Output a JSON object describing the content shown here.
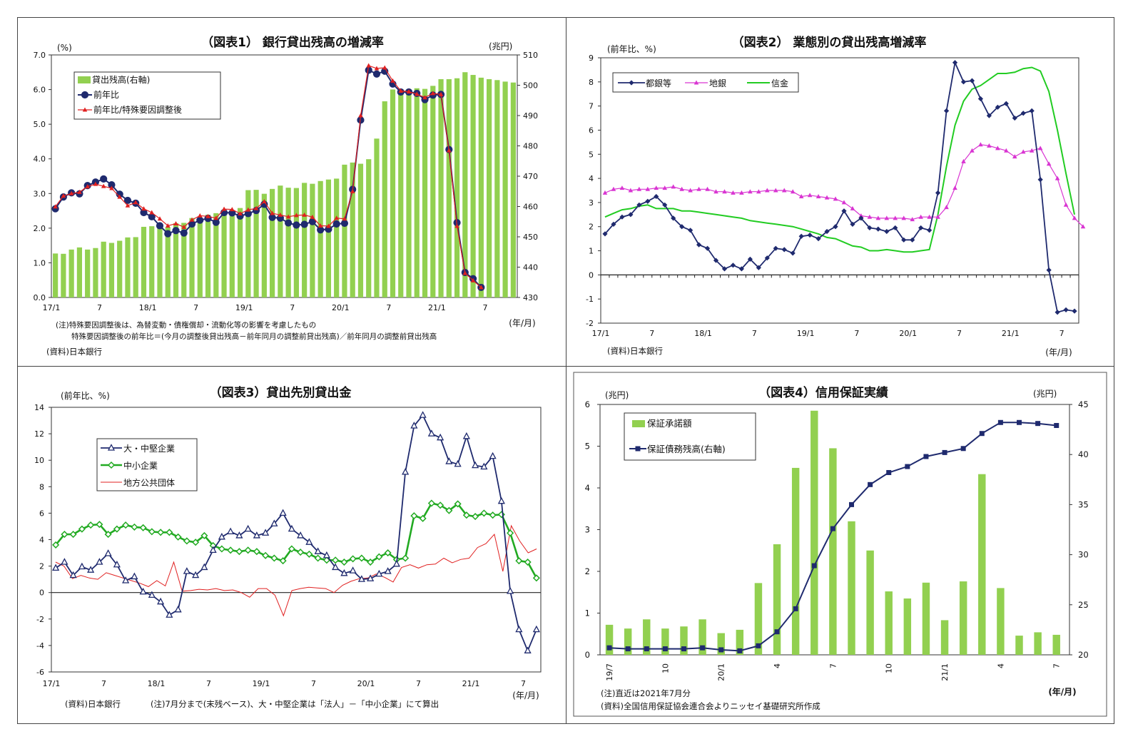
{
  "chart_data": [
    {
      "type": "bar+line",
      "title": "（図表1） 銀行貸出残高の増減率",
      "ylabel_left": "(%)",
      "ylabel_right": "(兆円)",
      "xunit": "(年/月)",
      "ylim_left": [
        0,
        7
      ],
      "ylim_right": [
        430,
        510
      ],
      "yticks_left": [
        "0.0",
        "1.0",
        "2.0",
        "3.0",
        "4.0",
        "5.0",
        "6.0",
        "7.0"
      ],
      "yticks_right": [
        "430",
        "440",
        "450",
        "460",
        "470",
        "480",
        "490",
        "500",
        "510"
      ],
      "xticks": [
        "17/1",
        "7",
        "18/1",
        "7",
        "19/1",
        "7",
        "20/1",
        "7",
        "21/1",
        "7"
      ],
      "legend": [
        "貸出残高(右軸)",
        "前年比",
        "前年比/特殊要因調整後"
      ],
      "colors": {
        "bar": "#92d050",
        "line1": "#1f2a6e",
        "line2": "#e02020"
      },
      "bar_values": [
        444.5,
        444.4,
        445.8,
        446.5,
        445.8,
        446.3,
        448.4,
        448.0,
        448.7,
        449.8,
        449.9,
        453.3,
        453.5,
        454.0,
        453.2,
        454.5,
        454.6,
        456.2,
        455.8,
        457.3,
        457.8,
        457.5,
        456.9,
        459.5,
        465.4,
        465.5,
        464.2,
        465.8,
        466.9,
        466.2,
        466.1,
        467.8,
        467.5,
        468.4,
        468.9,
        469.2,
        473.8,
        474.5,
        474.1,
        475.6,
        482.4,
        494.7,
        498.6,
        498.7,
        498.6,
        499.0,
        498.8,
        499.8,
        502.0,
        502.0,
        502.3,
        504.3,
        503.4,
        502.5,
        502.0,
        501.7,
        501.2,
        500.9
      ],
      "series": [
        {
          "name": "前年比",
          "values": [
            2.56,
            2.9,
            3.02,
            2.99,
            3.23,
            3.33,
            3.42,
            3.25,
            2.98,
            2.8,
            2.72,
            2.45,
            2.33,
            2.07,
            1.84,
            1.93,
            1.86,
            2.12,
            2.23,
            2.28,
            2.17,
            2.45,
            2.44,
            2.35,
            2.42,
            2.51,
            2.69,
            2.31,
            2.29,
            2.15,
            2.09,
            2.11,
            2.19,
            1.95,
            1.97,
            2.12,
            2.14,
            3.12,
            5.12,
            6.56,
            6.45,
            6.53,
            6.16,
            5.93,
            5.93,
            5.89,
            5.71,
            5.84,
            5.86,
            4.27,
            2.16,
            0.72,
            0.54,
            0.29
          ]
        },
        {
          "name": "前年比/特殊要因調整後",
          "values": [
            2.62,
            2.93,
            3.0,
            3.04,
            3.2,
            3.27,
            3.21,
            3.15,
            2.9,
            2.65,
            2.74,
            2.56,
            2.45,
            2.27,
            2.07,
            2.13,
            2.03,
            2.24,
            2.36,
            2.34,
            2.29,
            2.55,
            2.54,
            2.42,
            2.53,
            2.57,
            2.77,
            2.43,
            2.38,
            2.33,
            2.37,
            2.38,
            2.32,
            2.07,
            2.06,
            2.29,
            2.27,
            3.06,
            5.25,
            6.69,
            6.61,
            6.63,
            6.25,
            5.96,
            5.94,
            5.87,
            5.77,
            5.89,
            5.86,
            4.24,
            2.06,
            0.7,
            0.49,
            0.29
          ]
        }
      ],
      "notes": [
        "(注)特殊要因調整後は、為替変動・債権償却・流動化等の影響を考慮したもの",
        "特殊要因調整後の前年比＝(今月の調整後貸出残高－前年同月の調整前貸出残高)／前年同月の調整前貸出残高",
        "(資料)日本銀行"
      ]
    },
    {
      "type": "line",
      "title": "（図表2） 業態別の貸出残高増減率",
      "ylabel": "(前年比、%)",
      "xunit": "(年/月)",
      "ylim": [
        -2,
        9
      ],
      "yticks": [
        "-2",
        "-1",
        "0",
        "1",
        "2",
        "3",
        "4",
        "5",
        "6",
        "7",
        "8",
        "9"
      ],
      "xticks": [
        "17/1",
        "7",
        "18/1",
        "7",
        "19/1",
        "7",
        "20/1",
        "7",
        "21/1",
        "7"
      ],
      "legend": [
        "都銀等",
        "地銀",
        "信金"
      ],
      "colors": {
        "都銀等": "#1f2a6e",
        "地銀": "#d935d2",
        "信金": "#22cc22"
      },
      "series": [
        {
          "name": "都銀等",
          "values": [
            1.7,
            2.1,
            2.4,
            2.5,
            2.9,
            3.05,
            3.25,
            2.9,
            2.35,
            2.0,
            1.85,
            1.25,
            1.1,
            0.6,
            0.25,
            0.4,
            0.25,
            0.65,
            0.3,
            0.7,
            1.1,
            1.05,
            0.9,
            1.6,
            1.65,
            1.5,
            1.8,
            2.0,
            2.65,
            2.1,
            2.35,
            1.95,
            1.9,
            1.8,
            1.95,
            1.45,
            1.45,
            1.95,
            1.85,
            3.4,
            6.8,
            8.8,
            8.0,
            8.05,
            7.3,
            6.6,
            6.95,
            7.1,
            6.5,
            6.7,
            6.8,
            3.95,
            0.2,
            -1.55,
            -1.45,
            -1.5
          ]
        },
        {
          "name": "地銀",
          "values": [
            3.4,
            3.55,
            3.6,
            3.5,
            3.55,
            3.55,
            3.6,
            3.6,
            3.65,
            3.55,
            3.5,
            3.55,
            3.55,
            3.45,
            3.45,
            3.4,
            3.4,
            3.45,
            3.45,
            3.5,
            3.5,
            3.5,
            3.45,
            3.25,
            3.3,
            3.25,
            3.2,
            3.15,
            3.0,
            2.75,
            2.45,
            2.4,
            2.35,
            2.35,
            2.35,
            2.35,
            2.3,
            2.4,
            2.4,
            2.4,
            2.8,
            3.6,
            4.7,
            5.15,
            5.4,
            5.35,
            5.25,
            5.15,
            4.9,
            5.1,
            5.15,
            5.25,
            4.6,
            4.0,
            2.9,
            2.35,
            2.0
          ]
        },
        {
          "name": "信金",
          "values": [
            2.4,
            2.55,
            2.7,
            2.75,
            2.85,
            2.9,
            2.75,
            2.75,
            2.75,
            2.65,
            2.65,
            2.6,
            2.55,
            2.5,
            2.45,
            2.4,
            2.35,
            2.25,
            2.2,
            2.15,
            2.1,
            2.05,
            2.0,
            1.9,
            1.8,
            1.7,
            1.55,
            1.5,
            1.35,
            1.2,
            1.15,
            1.0,
            1.0,
            1.05,
            1.0,
            0.95,
            0.95,
            1.0,
            1.05,
            2.5,
            4.5,
            6.2,
            7.2,
            7.7,
            7.85,
            8.1,
            8.35,
            8.35,
            8.4,
            8.55,
            8.6,
            8.45,
            7.6,
            6.0,
            4.2,
            2.5
          ]
        }
      ],
      "notes": [
        "(資料)日本銀行"
      ]
    },
    {
      "type": "line",
      "title": "（図表3）貸出先別貸出金",
      "ylabel": "(前年比、%)",
      "xunit": "(年/月)",
      "ylim": [
        -6,
        14
      ],
      "yticks": [
        "-6",
        "-4",
        "-2",
        "0",
        "2",
        "4",
        "6",
        "8",
        "10",
        "12",
        "14"
      ],
      "xticks": [
        "17/1",
        "7",
        "18/1",
        "7",
        "19/1",
        "7",
        "20/1",
        "7",
        "21/1",
        "7"
      ],
      "legend": [
        "大・中堅企業",
        "中小企業",
        "地方公共団体"
      ],
      "colors": {
        "大・中堅企業": "#1f2a6e",
        "中小企業": "#22aa22",
        "地方公共団体": "#e02020"
      },
      "series": [
        {
          "name": "大・中堅企業",
          "values": [
            1.85,
            2.3,
            1.3,
            1.95,
            1.7,
            2.3,
            2.95,
            2.1,
            0.9,
            1.2,
            0.05,
            -0.2,
            -0.7,
            -1.7,
            -1.3,
            1.6,
            1.3,
            1.9,
            3.2,
            4.2,
            4.6,
            4.3,
            4.8,
            4.3,
            4.5,
            5.2,
            6.0,
            4.8,
            4.3,
            3.8,
            3.1,
            2.8,
            1.9,
            1.45,
            1.65,
            1.0,
            1.05,
            1.4,
            1.6,
            2.15,
            9.1,
            12.6,
            13.4,
            12.0,
            11.7,
            9.9,
            9.7,
            11.8,
            9.6,
            9.5,
            10.3,
            6.9,
            0.1,
            -2.8,
            -4.4,
            -2.8
          ]
        },
        {
          "name": "中小企業",
          "values": [
            3.6,
            4.4,
            4.4,
            4.8,
            5.1,
            5.15,
            4.4,
            4.8,
            5.1,
            4.95,
            4.9,
            4.6,
            4.55,
            4.55,
            4.2,
            3.9,
            3.8,
            4.3,
            3.55,
            3.3,
            3.2,
            3.1,
            3.2,
            3.1,
            2.8,
            2.6,
            2.4,
            3.3,
            3.05,
            2.9,
            2.6,
            2.45,
            2.45,
            2.3,
            2.55,
            2.6,
            2.3,
            2.7,
            3.0,
            2.5,
            2.6,
            5.8,
            5.6,
            6.75,
            6.6,
            6.2,
            6.7,
            5.85,
            5.75,
            6.0,
            5.85,
            5.9,
            4.5,
            2.4,
            2.3,
            1.1
          ]
        },
        {
          "name": "地方公共団体",
          "values": [
            2.3,
            2.0,
            1.05,
            1.3,
            1.1,
            1.0,
            1.5,
            1.3,
            1.1,
            0.9,
            0.7,
            0.45,
            0.9,
            0.5,
            2.3,
            0.1,
            0.15,
            0.25,
            0.2,
            0.3,
            0.15,
            0.2,
            0.0,
            -0.35,
            0.3,
            0.3,
            -0.2,
            -1.75,
            0.15,
            0.3,
            0.4,
            0.35,
            0.3,
            0.0,
            0.55,
            0.85,
            1.05,
            1.1,
            1.4,
            1.15,
            0.8,
            1.9,
            2.1,
            1.85,
            2.1,
            2.15,
            2.6,
            2.25,
            2.5,
            2.6,
            3.4,
            3.7,
            4.4,
            1.6,
            5.05,
            3.9,
            3.0,
            3.3
          ]
        }
      ],
      "notes": [
        "(資料)日本銀行",
        "(注)7月分まで(末残ベース)、大・中堅企業は「法人」－「中小企業」にて算出"
      ]
    },
    {
      "type": "bar+line",
      "title": "（図表4）信用保証実績",
      "ylabel_left": "(兆円)",
      "ylabel_right": "(兆円)",
      "xunit": "(年/月)",
      "ylim_left": [
        0,
        6
      ],
      "ylim_right": [
        20,
        45
      ],
      "yticks_left": [
        "0",
        "1",
        "2",
        "3",
        "4",
        "5",
        "6"
      ],
      "yticks_right": [
        "20",
        "25",
        "30",
        "35",
        "40",
        "45"
      ],
      "xticks": [
        "19/7",
        "10",
        "20/1",
        "4",
        "7",
        "10",
        "21/1",
        "4",
        "7"
      ],
      "categories_count": 25,
      "legend": [
        "保証承諾額",
        "保証債務残高(右軸)"
      ],
      "colors": {
        "bar": "#92d050",
        "line": "#1f2a6e"
      },
      "series": [
        {
          "name": "保証承諾額",
          "values": [
            0.72,
            0.63,
            0.85,
            0.63,
            0.68,
            0.85,
            0.52,
            0.6,
            1.72,
            2.65,
            4.48,
            5.85,
            4.95,
            3.2,
            2.5,
            1.52,
            1.35,
            1.73,
            0.83,
            1.76,
            4.33,
            1.6,
            0.46,
            0.54,
            0.48
          ]
        },
        {
          "name": "保証債務残高(右軸)",
          "values": [
            20.7,
            20.6,
            20.6,
            20.6,
            20.6,
            20.7,
            20.5,
            20.4,
            20.9,
            22.3,
            24.6,
            28.9,
            32.6,
            35.0,
            37.0,
            38.2,
            38.8,
            39.8,
            40.2,
            40.6,
            42.1,
            43.2,
            43.2,
            43.1,
            42.9
          ]
        }
      ],
      "notes": [
        "(注)直近は2021年7月分",
        "(資料)全国信用保証協会連合会よりニッセイ基礎研究所作成"
      ]
    }
  ]
}
